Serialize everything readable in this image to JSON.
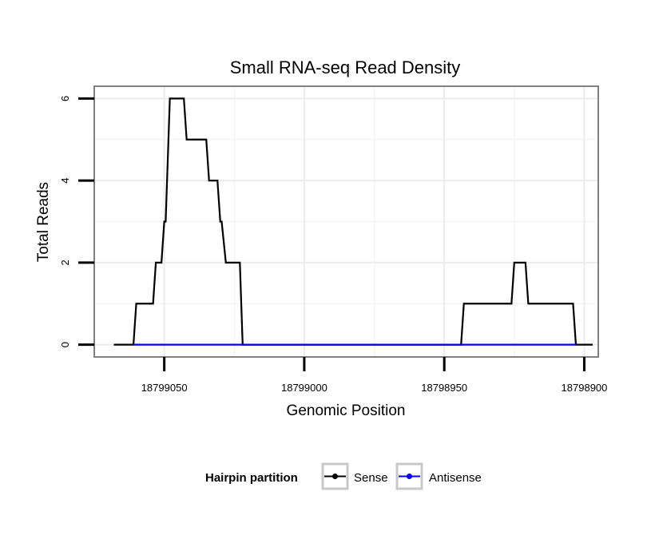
{
  "chart_data": {
    "type": "line",
    "title": "Small RNA-seq Read Density",
    "xlabel": "Genomic Position",
    "ylabel": "Total Reads",
    "xlim": [
      18799075,
      18798895
    ],
    "ylim": [
      -0.3,
      6.3
    ],
    "x_reversed": true,
    "x_ticks": [
      18799050,
      18799000,
      18798950,
      18798900
    ],
    "x_tick_labels": [
      "18799050",
      "18799000",
      "18798950",
      "18798900"
    ],
    "y_ticks": [
      0,
      2,
      4,
      6
    ],
    "y_tick_labels": [
      "0",
      "2",
      "4",
      "6"
    ],
    "grid": true,
    "legend": {
      "title": "Hairpin partition",
      "position": "bottom"
    },
    "series": [
      {
        "name": "Sense",
        "color": "#000000",
        "points": [
          [
            18799068,
            0
          ],
          [
            18799061,
            0
          ],
          [
            18799060,
            1
          ],
          [
            18799054,
            1
          ],
          [
            18799053,
            2
          ],
          [
            18799051,
            2
          ],
          [
            18799050,
            3
          ],
          [
            18799049.5,
            3
          ],
          [
            18799048.5,
            5
          ],
          [
            18799048,
            6
          ],
          [
            18799043,
            6
          ],
          [
            18799042,
            5
          ],
          [
            18799035,
            5
          ],
          [
            18799034,
            4
          ],
          [
            18799031,
            4
          ],
          [
            18799030,
            3
          ],
          [
            18799029.5,
            3
          ],
          [
            18799028,
            2
          ],
          [
            18799023,
            2
          ],
          [
            18799022,
            0
          ],
          [
            18798944,
            0
          ],
          [
            18798943,
            1
          ],
          [
            18798926,
            1
          ],
          [
            18798925,
            2
          ],
          [
            18798921,
            2
          ],
          [
            18798920,
            1
          ],
          [
            18798904,
            1
          ],
          [
            18798903,
            0
          ],
          [
            18798897,
            0
          ]
        ]
      },
      {
        "name": "Antisense",
        "color": "#0000ff",
        "points": [
          [
            18799061,
            0
          ],
          [
            18799022,
            0
          ],
          [
            18798944,
            0
          ],
          [
            18798903,
            0
          ]
        ]
      }
    ]
  }
}
